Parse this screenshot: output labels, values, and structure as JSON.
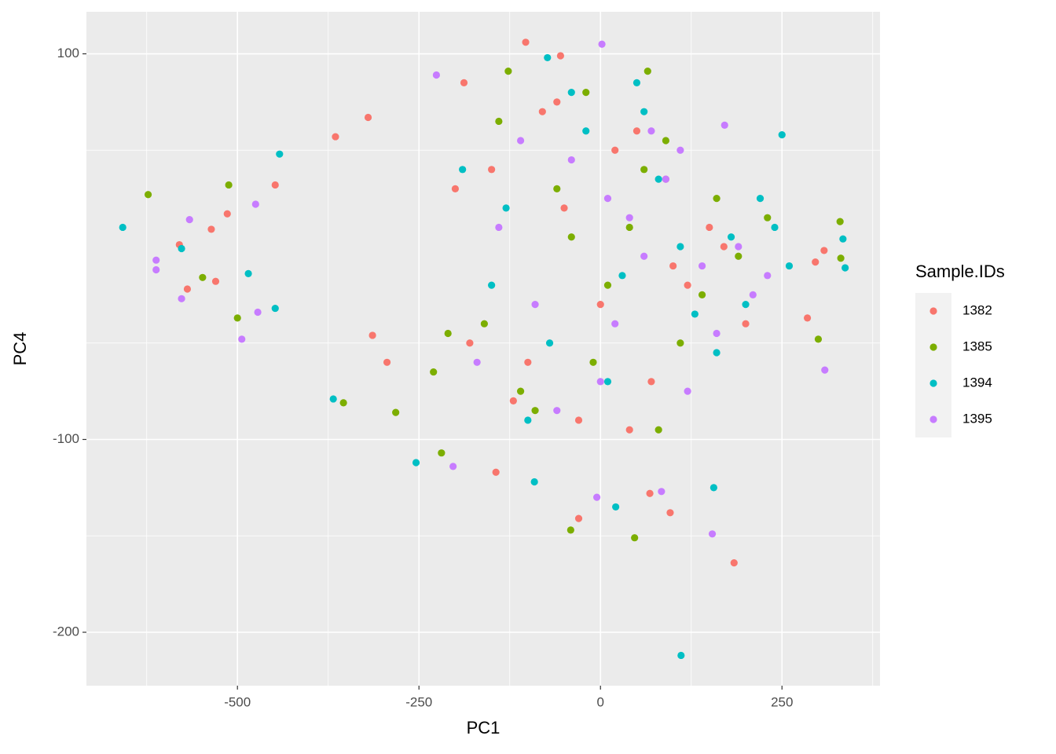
{
  "chart_data": {
    "type": "scatter",
    "x_label": "PC1",
    "y_label": "PC4",
    "xlim": [
      -708,
      385
    ],
    "ylim": [
      -227.7,
      121.8
    ],
    "xticks": [
      -500,
      -250,
      0,
      250
    ],
    "yticks": [
      -200,
      -100,
      100
    ],
    "x_minor_grid": [
      -625,
      -375,
      -125,
      125,
      375
    ],
    "y_minor_grid": [
      -150,
      -50,
      50
    ],
    "grid": true,
    "legend_title": "Sample.IDs",
    "legend": "right",
    "series": [
      {
        "name": "1382",
        "color": "#F8766D",
        "x": [
          -103,
          -55,
          184,
          -580,
          -530,
          -536,
          -514,
          -569,
          -448,
          -365,
          -320,
          -314,
          -294,
          -30,
          96,
          68,
          -144,
          308,
          285,
          296,
          -188,
          -150,
          -100,
          -50,
          0,
          50,
          100,
          150,
          200,
          -200,
          -120,
          -80,
          -30,
          20,
          70,
          120,
          170,
          -180,
          -60,
          40,
          90
        ],
        "values": [
          106,
          99,
          -164,
          1,
          -18,
          9,
          17,
          -22,
          32,
          57,
          67,
          -46,
          -60,
          -141,
          -138,
          -128,
          -117,
          -2,
          -37,
          -8,
          85,
          40,
          -60,
          20,
          -30,
          60,
          -10,
          10,
          -40,
          30,
          -80,
          70,
          -90,
          50,
          -70,
          -20,
          0,
          -50,
          75,
          -95,
          35
        ]
      },
      {
        "name": "1385",
        "color": "#7CAE00",
        "x": [
          -623,
          -512,
          -500,
          -354,
          -41,
          47,
          -127,
          65,
          330,
          300,
          -219,
          -282,
          331,
          -548,
          -160,
          -110,
          -60,
          -10,
          40,
          90,
          140,
          190,
          230,
          -210,
          -140,
          -90,
          -40,
          10,
          60,
          110,
          160,
          -230,
          -20,
          80
        ],
        "values": [
          27,
          32,
          -37,
          -81,
          -147,
          -151,
          91,
          91,
          13,
          -48,
          -107,
          -86,
          -6,
          -16,
          -40,
          -75,
          30,
          -60,
          10,
          55,
          -25,
          -5,
          15,
          -45,
          65,
          -85,
          5,
          -20,
          40,
          -50,
          25,
          -65,
          80,
          -95
        ]
      },
      {
        "name": "1394",
        "color": "#00BFC4",
        "x": [
          -658,
          -577,
          -442,
          -368,
          -254,
          -91,
          21,
          111,
          250,
          337,
          334,
          156,
          -73,
          -448,
          -485,
          -130,
          -70,
          -20,
          30,
          80,
          130,
          180,
          220,
          260,
          -190,
          -100,
          -40,
          10,
          60,
          110,
          160,
          200,
          240,
          -150,
          50
        ],
        "values": [
          10,
          -1,
          48,
          -79,
          -112,
          -122,
          -135,
          -212,
          58,
          -11,
          4,
          -125,
          98,
          -32,
          -14,
          20,
          -50,
          60,
          -15,
          35,
          -35,
          5,
          25,
          -10,
          40,
          -90,
          80,
          -70,
          70,
          0,
          -55,
          -30,
          10,
          -20,
          85
        ]
      },
      {
        "name": "1395",
        "color": "#C77CFF",
        "x": [
          2,
          -577,
          -612,
          -612,
          -566,
          -494,
          -472,
          309,
          154,
          -5,
          -203,
          -226,
          84,
          171,
          -475,
          -140,
          -90,
          -40,
          10,
          60,
          110,
          160,
          210,
          -170,
          -60,
          0,
          40,
          90,
          140,
          190,
          -110,
          20,
          70,
          120,
          230
        ],
        "values": [
          105,
          -27,
          -12,
          -7,
          14,
          -48,
          -34,
          -64,
          -149,
          -130,
          -114,
          89,
          -127,
          63,
          22,
          10,
          -30,
          45,
          25,
          -5,
          50,
          -45,
          -25,
          -60,
          -85,
          -70,
          15,
          35,
          -10,
          0,
          55,
          -40,
          60,
          -75,
          -15
        ]
      }
    ]
  }
}
